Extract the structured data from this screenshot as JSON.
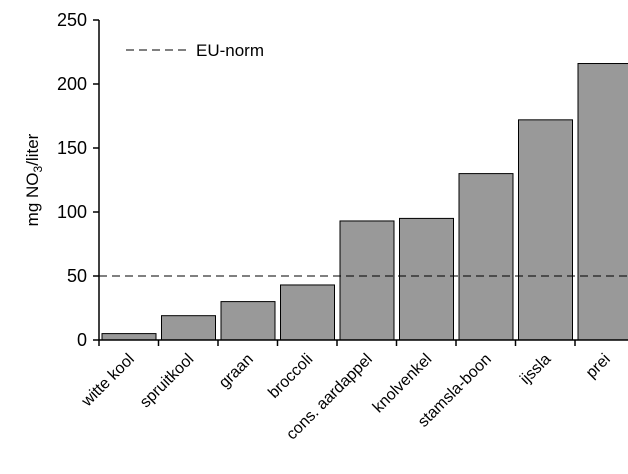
{
  "chart_data": {
    "type": "bar",
    "title": "",
    "xlabel": "",
    "ylabel_main": "mg NO",
    "ylabel_sub": "3",
    "ylabel_tail": "/liter",
    "categories": [
      "witte kool",
      "spruitkool",
      "graan",
      "broccoli",
      "cons. aardappel",
      "knolvenkel",
      "stamsla-boon",
      "ijssla",
      "prei"
    ],
    "values": [
      5,
      19,
      30,
      43,
      93,
      95,
      130,
      172,
      216
    ],
    "ylim": [
      0,
      250
    ],
    "yticks": [
      "0",
      "50",
      "100",
      "150",
      "200",
      "250"
    ],
    "reference_line": {
      "label": "EU-norm",
      "value": 50,
      "style": "dashed"
    },
    "bar_color": "#999999",
    "bar_edge_color": "#000000",
    "grid": false,
    "legend_position": "top-left"
  }
}
